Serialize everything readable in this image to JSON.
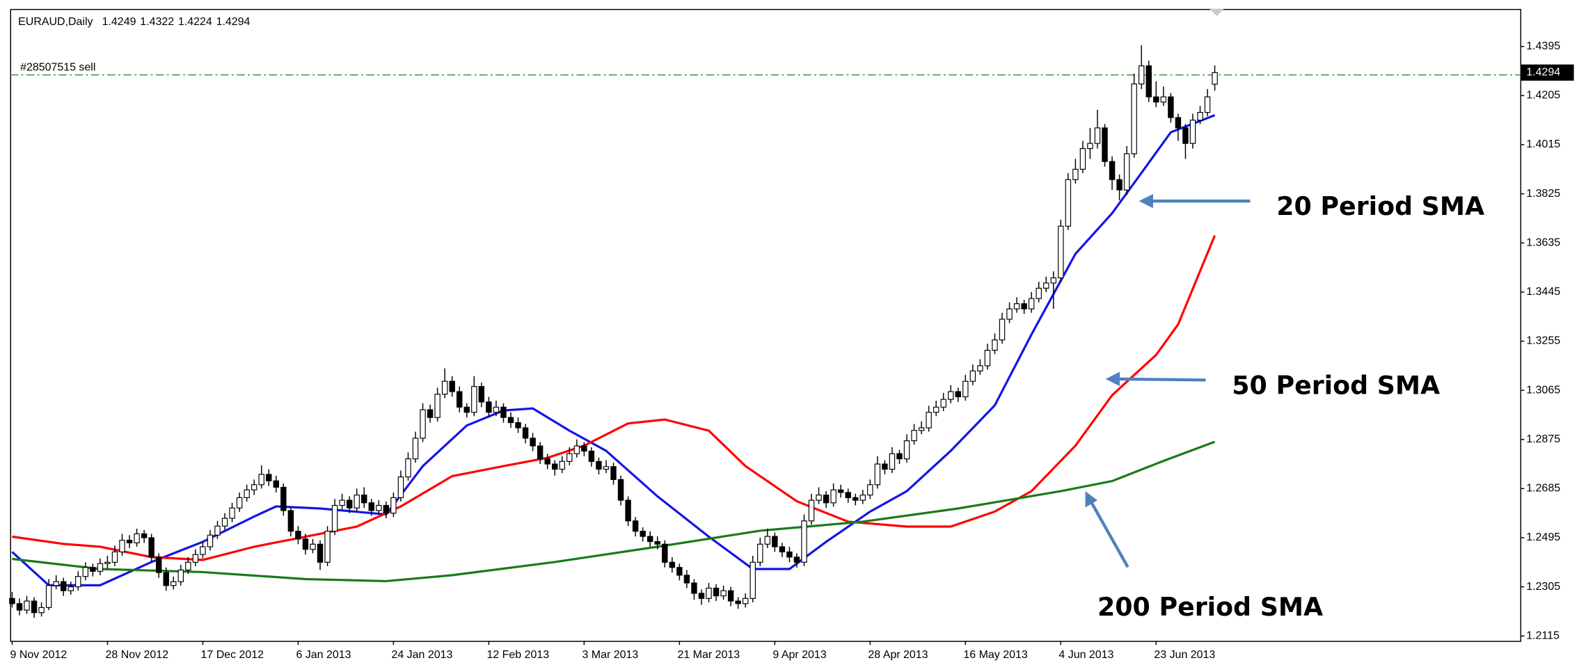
{
  "chart_data": {
    "type": "candlestick",
    "symbol": "EURAUD,Daily",
    "categories": [
      "9 Nov 2012",
      null,
      null,
      null,
      null,
      null,
      null,
      null,
      null,
      null,
      null,
      null,
      null,
      "28 Nov 2012",
      null,
      null,
      null,
      null,
      null,
      null,
      null,
      null,
      null,
      null,
      null,
      null,
      "17 Dec 2012",
      null,
      null,
      null,
      null,
      null,
      null,
      null,
      null,
      null,
      null,
      null,
      null,
      "6 Jan 2013",
      null,
      null,
      null,
      null,
      null,
      null,
      null,
      null,
      null,
      null,
      null,
      null,
      "24 Jan 2013",
      null,
      null,
      null,
      null,
      null,
      null,
      null,
      null,
      null,
      null,
      null,
      null,
      "12 Feb 2013",
      null,
      null,
      null,
      null,
      null,
      null,
      null,
      null,
      null,
      null,
      null,
      null,
      "3 Mar 2013",
      null,
      null,
      null,
      null,
      null,
      null,
      null,
      null,
      null,
      null,
      null,
      null,
      "21 Mar 2013",
      null,
      null,
      null,
      null,
      null,
      null,
      null,
      null,
      null,
      null,
      null,
      null,
      "9 Apr 2013",
      null,
      null,
      null,
      null,
      null,
      null,
      null,
      null,
      null,
      null,
      null,
      null,
      "28 Apr 2013",
      null,
      null,
      null,
      null,
      null,
      null,
      null,
      null,
      null,
      null,
      null,
      null,
      "16 May 2013",
      null,
      null,
      null,
      null,
      null,
      null,
      null,
      null,
      null,
      null,
      null,
      null,
      "4 Jun 2013",
      null,
      null,
      null,
      null,
      null,
      null,
      null,
      null,
      null,
      null,
      null,
      null,
      "23 Jun 2013",
      null,
      null,
      null,
      null,
      null,
      null,
      null,
      null
    ],
    "ohlc": [
      [
        1.226,
        1.2285,
        1.2225,
        1.224
      ],
      [
        1.224,
        1.226,
        1.2195,
        1.2215
      ],
      [
        1.2215,
        1.227,
        1.22,
        1.225
      ],
      [
        1.225,
        1.2265,
        1.2185,
        1.2205
      ],
      [
        1.2205,
        1.2245,
        1.219,
        1.2225
      ],
      [
        1.2225,
        1.2335,
        1.2215,
        1.231
      ],
      [
        1.231,
        1.235,
        1.2295,
        1.2325
      ],
      [
        1.2325,
        1.234,
        1.227,
        1.229
      ],
      [
        1.229,
        1.2325,
        1.2275,
        1.2305
      ],
      [
        1.2305,
        1.2365,
        1.229,
        1.2345
      ],
      [
        1.2345,
        1.24,
        1.233,
        1.238
      ],
      [
        1.238,
        1.2395,
        1.2345,
        1.2365
      ],
      [
        1.2365,
        1.2415,
        1.235,
        1.2395
      ],
      [
        1.2395,
        1.2425,
        1.2375,
        1.24
      ],
      [
        1.24,
        1.2465,
        1.2385,
        1.244
      ],
      [
        1.244,
        1.251,
        1.2425,
        1.2485
      ],
      [
        1.2485,
        1.2505,
        1.2455,
        1.2475
      ],
      [
        1.2475,
        1.253,
        1.246,
        1.251
      ],
      [
        1.251,
        1.2525,
        1.2475,
        1.2495
      ],
      [
        1.2495,
        1.251,
        1.24,
        1.242
      ],
      [
        1.242,
        1.2435,
        1.234,
        1.236
      ],
      [
        1.236,
        1.238,
        1.229,
        1.231
      ],
      [
        1.231,
        1.2345,
        1.2295,
        1.2325
      ],
      [
        1.2325,
        1.239,
        1.231,
        1.237
      ],
      [
        1.237,
        1.242,
        1.2355,
        1.24
      ],
      [
        1.24,
        1.245,
        1.2385,
        1.243
      ],
      [
        1.243,
        1.248,
        1.2415,
        1.246
      ],
      [
        1.246,
        1.2525,
        1.2445,
        1.2505
      ],
      [
        1.2505,
        1.256,
        1.249,
        1.254
      ],
      [
        1.254,
        1.259,
        1.2525,
        1.257
      ],
      [
        1.257,
        1.263,
        1.2555,
        1.261
      ],
      [
        1.261,
        1.267,
        1.2595,
        1.265
      ],
      [
        1.265,
        1.27,
        1.2635,
        1.268
      ],
      [
        1.268,
        1.272,
        1.266,
        1.27
      ],
      [
        1.27,
        1.2775,
        1.2685,
        1.274
      ],
      [
        1.274,
        1.276,
        1.2695,
        1.2715
      ],
      [
        1.2715,
        1.2735,
        1.267,
        1.269
      ],
      [
        1.269,
        1.2705,
        1.258,
        1.26
      ],
      [
        1.26,
        1.2615,
        1.25,
        1.252
      ],
      [
        1.252,
        1.254,
        1.247,
        1.249
      ],
      [
        1.249,
        1.251,
        1.243,
        1.245
      ],
      [
        1.245,
        1.249,
        1.2435,
        1.247
      ],
      [
        1.247,
        1.2485,
        1.237,
        1.24
      ],
      [
        1.24,
        1.254,
        1.2385,
        1.252
      ],
      [
        1.252,
        1.2645,
        1.2505,
        1.262
      ],
      [
        1.262,
        1.2665,
        1.2605,
        1.264
      ],
      [
        1.264,
        1.2655,
        1.259,
        1.261
      ],
      [
        1.261,
        1.2685,
        1.2595,
        1.266
      ],
      [
        1.266,
        1.269,
        1.261,
        1.263
      ],
      [
        1.263,
        1.2645,
        1.258,
        1.26
      ],
      [
        1.26,
        1.264,
        1.2585,
        1.262
      ],
      [
        1.262,
        1.2635,
        1.257,
        1.259
      ],
      [
        1.259,
        1.267,
        1.2575,
        1.265
      ],
      [
        1.265,
        1.2755,
        1.2635,
        1.273
      ],
      [
        1.273,
        1.2825,
        1.2715,
        1.28
      ],
      [
        1.28,
        1.2905,
        1.2785,
        1.288
      ],
      [
        1.288,
        1.3015,
        1.2865,
        1.299
      ],
      [
        1.299,
        1.301,
        1.294,
        1.296
      ],
      [
        1.296,
        1.3075,
        1.2945,
        1.305
      ],
      [
        1.305,
        1.315,
        1.3035,
        1.31
      ],
      [
        1.31,
        1.312,
        1.304,
        1.306
      ],
      [
        1.306,
        1.308,
        1.298,
        1.3
      ],
      [
        1.3,
        1.3015,
        1.296,
        1.298
      ],
      [
        1.298,
        1.312,
        1.2965,
        1.308
      ],
      [
        1.308,
        1.3095,
        1.3,
        1.302
      ],
      [
        1.302,
        1.304,
        1.296,
        1.298
      ],
      [
        1.298,
        1.3025,
        1.2965,
        1.3
      ],
      [
        1.3,
        1.3015,
        1.294,
        1.296
      ],
      [
        1.296,
        1.298,
        1.292,
        1.294
      ],
      [
        1.294,
        1.296,
        1.29,
        1.292
      ],
      [
        1.292,
        1.2935,
        1.286,
        1.288
      ],
      [
        1.288,
        1.29,
        1.283,
        1.285
      ],
      [
        1.285,
        1.2865,
        1.278,
        1.28
      ],
      [
        1.28,
        1.282,
        1.276,
        1.278
      ],
      [
        1.278,
        1.2795,
        1.2735,
        1.276
      ],
      [
        1.276,
        1.281,
        1.2745,
        1.279
      ],
      [
        1.279,
        1.2845,
        1.2775,
        1.282
      ],
      [
        1.282,
        1.2875,
        1.2805,
        1.285
      ],
      [
        1.285,
        1.2865,
        1.281,
        1.283
      ],
      [
        1.283,
        1.2845,
        1.277,
        1.279
      ],
      [
        1.279,
        1.2805,
        1.274,
        1.276
      ],
      [
        1.276,
        1.2795,
        1.2745,
        1.277
      ],
      [
        1.277,
        1.2785,
        1.27,
        1.272
      ],
      [
        1.272,
        1.2735,
        1.262,
        1.264
      ],
      [
        1.264,
        1.2655,
        1.254,
        1.256
      ],
      [
        1.256,
        1.2575,
        1.25,
        1.252
      ],
      [
        1.252,
        1.2535,
        1.248,
        1.25
      ],
      [
        1.25,
        1.252,
        1.246,
        1.248
      ],
      [
        1.248,
        1.25,
        1.245,
        1.247
      ],
      [
        1.247,
        1.2485,
        1.238,
        1.24
      ],
      [
        1.24,
        1.242,
        1.236,
        1.238
      ],
      [
        1.238,
        1.2395,
        1.233,
        1.235
      ],
      [
        1.235,
        1.237,
        1.23,
        1.232
      ],
      [
        1.232,
        1.2335,
        1.2255,
        1.228
      ],
      [
        1.228,
        1.2295,
        1.2235,
        1.226
      ],
      [
        1.226,
        1.232,
        1.2245,
        1.23
      ],
      [
        1.23,
        1.2315,
        1.225,
        1.227
      ],
      [
        1.227,
        1.231,
        1.2255,
        1.229
      ],
      [
        1.229,
        1.2305,
        1.223,
        1.225
      ],
      [
        1.225,
        1.2265,
        1.222,
        1.224
      ],
      [
        1.224,
        1.228,
        1.2225,
        1.226
      ],
      [
        1.226,
        1.2425,
        1.2245,
        1.24
      ],
      [
        1.24,
        1.2495,
        1.2385,
        1.247
      ],
      [
        1.247,
        1.253,
        1.2455,
        1.25
      ],
      [
        1.25,
        1.2515,
        1.244,
        1.246
      ],
      [
        1.246,
        1.2475,
        1.242,
        1.244
      ],
      [
        1.244,
        1.246,
        1.24,
        1.242
      ],
      [
        1.242,
        1.2435,
        1.238,
        1.24
      ],
      [
        1.24,
        1.2585,
        1.2385,
        1.256
      ],
      [
        1.256,
        1.2665,
        1.2545,
        1.264
      ],
      [
        1.264,
        1.269,
        1.2625,
        1.266
      ],
      [
        1.266,
        1.2675,
        1.261,
        1.263
      ],
      [
        1.263,
        1.2705,
        1.2615,
        1.268
      ],
      [
        1.268,
        1.27,
        1.265,
        1.267
      ],
      [
        1.267,
        1.2685,
        1.263,
        1.265
      ],
      [
        1.265,
        1.2665,
        1.262,
        1.264
      ],
      [
        1.264,
        1.268,
        1.2625,
        1.266
      ],
      [
        1.266,
        1.272,
        1.2645,
        1.27
      ],
      [
        1.27,
        1.281,
        1.2685,
        1.278
      ],
      [
        1.278,
        1.2795,
        1.274,
        1.276
      ],
      [
        1.276,
        1.2845,
        1.2745,
        1.282
      ],
      [
        1.282,
        1.2835,
        1.278,
        1.28
      ],
      [
        1.28,
        1.2895,
        1.2785,
        1.287
      ],
      [
        1.287,
        1.2935,
        1.2855,
        1.291
      ],
      [
        1.291,
        1.2945,
        1.2895,
        1.292
      ],
      [
        1.292,
        1.3005,
        1.2905,
        1.298
      ],
      [
        1.298,
        1.3025,
        1.2965,
        1.3
      ],
      [
        1.3,
        1.3055,
        1.2985,
        1.303
      ],
      [
        1.303,
        1.3085,
        1.3015,
        1.306
      ],
      [
        1.306,
        1.3075,
        1.302,
        1.304
      ],
      [
        1.304,
        1.3125,
        1.3025,
        1.31
      ],
      [
        1.31,
        1.3165,
        1.3085,
        1.314
      ],
      [
        1.314,
        1.3185,
        1.3125,
        1.316
      ],
      [
        1.316,
        1.3245,
        1.3145,
        1.322
      ],
      [
        1.322,
        1.3285,
        1.3205,
        1.326
      ],
      [
        1.326,
        1.3365,
        1.3245,
        1.334
      ],
      [
        1.334,
        1.3405,
        1.3325,
        1.338
      ],
      [
        1.338,
        1.3425,
        1.3365,
        1.34
      ],
      [
        1.34,
        1.3415,
        1.336,
        1.338
      ],
      [
        1.338,
        1.3445,
        1.3365,
        1.342
      ],
      [
        1.342,
        1.3485,
        1.3405,
        1.346
      ],
      [
        1.346,
        1.3505,
        1.3445,
        1.348
      ],
      [
        1.348,
        1.3525,
        1.338,
        1.35
      ],
      [
        1.35,
        1.3725,
        1.3485,
        1.37
      ],
      [
        1.37,
        1.3905,
        1.3685,
        1.388
      ],
      [
        1.388,
        1.396,
        1.3865,
        1.392
      ],
      [
        1.392,
        1.403,
        1.3905,
        1.4
      ],
      [
        1.4,
        1.408,
        1.396,
        1.402
      ],
      [
        1.402,
        1.415,
        1.4,
        1.408
      ],
      [
        1.408,
        1.4095,
        1.393,
        1.395
      ],
      [
        1.395,
        1.397,
        1.384,
        1.388
      ],
      [
        1.388,
        1.39,
        1.38,
        1.384
      ],
      [
        1.384,
        1.401,
        1.382,
        1.398
      ],
      [
        1.398,
        1.429,
        1.3965,
        1.425
      ],
      [
        1.425,
        1.44,
        1.423,
        1.432
      ],
      [
        1.432,
        1.434,
        1.418,
        1.42
      ],
      [
        1.42,
        1.426,
        1.416,
        1.418
      ],
      [
        1.418,
        1.424,
        1.4165,
        1.42
      ],
      [
        1.42,
        1.4215,
        1.41,
        1.412
      ],
      [
        1.412,
        1.4135,
        1.403,
        1.408
      ],
      [
        1.408,
        1.4095,
        1.396,
        1.402
      ],
      [
        1.402,
        1.4135,
        1.4,
        1.411
      ],
      [
        1.411,
        1.4165,
        1.4095,
        1.414
      ],
      [
        1.414,
        1.423,
        1.4125,
        1.42
      ],
      [
        1.4249,
        1.4322,
        1.4224,
        1.4294
      ]
    ],
    "candle_colors": {
      "up": "#ffffff",
      "down": "#000000",
      "outline": "#000000"
    },
    "series": [
      {
        "color": "#1414e6",
        "x": [
          0,
          5,
          12,
          19,
          26,
          33,
          36,
          42,
          51,
          56,
          62,
          67,
          71,
          76,
          81,
          88,
          95,
          101,
          106,
          111,
          117,
          122,
          128,
          134,
          139,
          145,
          150,
          154,
          158,
          164
        ],
        "values": [
          1.244,
          1.2311,
          1.2311,
          1.2401,
          1.2479,
          1.2577,
          1.2616,
          1.2608,
          1.2585,
          1.2772,
          1.2929,
          1.2987,
          1.2995,
          1.2909,
          1.2831,
          1.2655,
          1.2499,
          1.2374,
          1.2374,
          1.2479,
          1.2596,
          1.2675,
          1.2831,
          1.3007,
          1.3281,
          1.3593,
          1.375,
          1.3906,
          1.4063,
          1.4129
        ]
      },
      {
        "color": "#ff0000",
        "x": [
          0,
          7,
          12,
          19,
          26,
          33,
          40,
          47,
          53,
          60,
          67,
          73,
          78,
          84,
          89,
          95,
          100,
          107,
          114,
          122,
          128,
          134,
          139,
          145,
          150,
          156,
          159,
          164
        ],
        "values": [
          1.2499,
          1.2471,
          1.246,
          1.242,
          1.2409,
          1.246,
          1.2499,
          1.2538,
          1.2616,
          1.2733,
          1.2772,
          1.2804,
          1.2851,
          1.2937,
          1.2952,
          1.2909,
          1.2772,
          1.2636,
          1.2557,
          1.2538,
          1.2538,
          1.2596,
          1.2675,
          1.2851,
          1.3046,
          1.3202,
          1.332,
          1.3664
        ]
      },
      {
        "color": "#1a7a1a",
        "x": [
          0,
          12,
          26,
          40,
          51,
          60,
          74,
          88,
          102,
          116,
          129,
          143,
          150,
          157,
          164
        ],
        "values": [
          1.2413,
          1.2374,
          1.2362,
          1.2335,
          1.2327,
          1.235,
          1.2401,
          1.246,
          1.2522,
          1.2557,
          1.2608,
          1.2675,
          1.2714,
          1.2792,
          1.2866
        ]
      }
    ],
    "annotations": [
      "20 Period SMA",
      "50 Period SMA",
      "200 Period SMA"
    ],
    "order_line": {
      "label": "#28507515 sell",
      "value": 1.4285,
      "color": "#2e8b2e"
    },
    "ylim": [
      1.2096,
      1.454
    ],
    "yticks": [
      1.4395,
      1.4205,
      1.4015,
      1.3825,
      1.3635,
      1.3445,
      1.3255,
      1.3065,
      1.2875,
      1.2685,
      1.2495,
      1.2305,
      1.2115
    ]
  }
}
